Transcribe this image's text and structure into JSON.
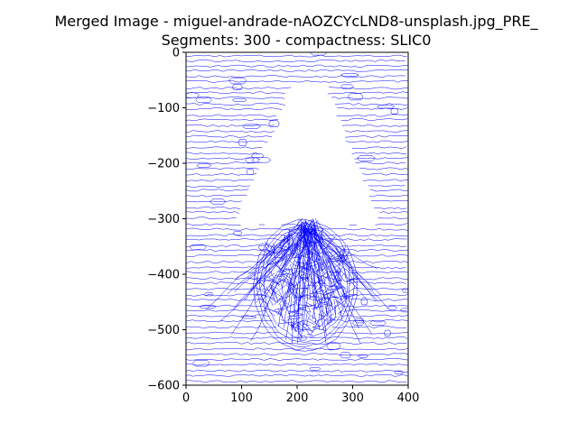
{
  "figure": {
    "title_line1": "Merged Image - miguel-andrade-nAOZCYcLND8-unsplash.jpg_PRE_",
    "title_line2": "Segments: 300 - compactness: SLIC0"
  },
  "chart_data": {
    "type": "image",
    "title": "Merged Image - miguel-andrade-nAOZCYcLND8-unsplash.jpg_PRE_ / Segments: 300 - compactness: SLIC0",
    "xlabel": "",
    "ylabel": "",
    "xlim": [
      0,
      400
    ],
    "ylim": [
      -600,
      0
    ],
    "x_ticks": [
      0,
      100,
      200,
      300,
      400
    ],
    "y_ticks": [
      0,
      -100,
      -200,
      -300,
      -400,
      -500,
      -600
    ],
    "x_tick_labels": [
      "0",
      "100",
      "200",
      "300",
      "400"
    ],
    "y_tick_labels": [
      "0",
      "−100",
      "−200",
      "−300",
      "−400",
      "−500",
      "−600"
    ],
    "segments": 300,
    "compactness": "SLIC0",
    "content": "blue superpixel boundary contours",
    "line_color": "#0000ff",
    "grid": false
  }
}
